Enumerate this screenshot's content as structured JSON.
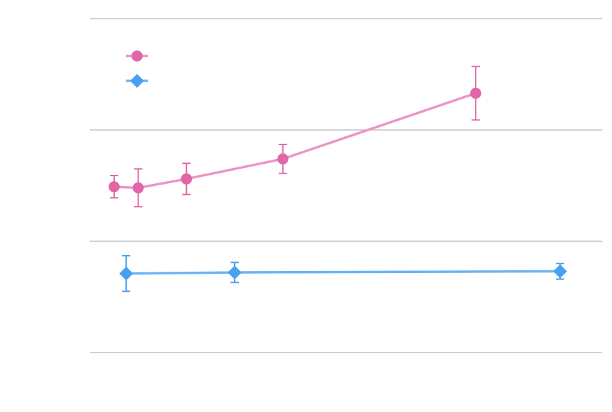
{
  "chart_data": {
    "type": "line",
    "title": "",
    "xlabel": "",
    "ylabel": "",
    "grid": true,
    "ylim": [
      0,
      3
    ],
    "xlim": [
      -0.25,
      4
    ],
    "legend_position": "top-left",
    "series": [
      {
        "marker": "circle",
        "color": "#e066a8",
        "line_color": "#ee93c7",
        "points": [
          {
            "x": -0.05,
            "y": 1.49,
            "err": 0.1
          },
          {
            "x": 0.15,
            "y": 1.48,
            "err": 0.17
          },
          {
            "x": 0.55,
            "y": 1.56,
            "err": 0.14
          },
          {
            "x": 1.35,
            "y": 1.74,
            "err": 0.13
          },
          {
            "x": 2.95,
            "y": 2.33,
            "err": 0.24
          }
        ]
      },
      {
        "marker": "diamond",
        "color": "#4a9ff0",
        "line_color": "#6ab4f5",
        "points": [
          {
            "x": 0.05,
            "y": 0.71,
            "err": 0.16
          },
          {
            "x": 0.95,
            "y": 0.72,
            "err": 0.09
          },
          {
            "x": 3.65,
            "y": 0.73,
            "err": 0.07
          }
        ]
      }
    ]
  }
}
